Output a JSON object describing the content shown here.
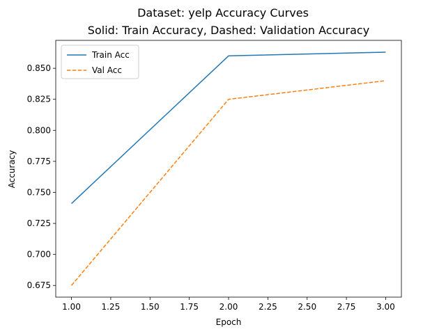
{
  "chart_data": {
    "type": "line",
    "title": "Dataset: yelp Accuracy Curves",
    "subtitle": "Solid: Train Accuracy, Dashed: Validation Accuracy",
    "xlabel": "Epoch",
    "ylabel": "Accuracy",
    "xlim": [
      0.9,
      3.1
    ],
    "ylim": [
      0.6656,
      0.8725
    ],
    "xticks": [
      1.0,
      1.25,
      1.5,
      1.75,
      2.0,
      2.25,
      2.5,
      2.75,
      3.0
    ],
    "xtick_labels": [
      "1.00",
      "1.25",
      "1.50",
      "1.75",
      "2.00",
      "2.25",
      "2.50",
      "2.75",
      "3.00"
    ],
    "yticks": [
      0.675,
      0.7,
      0.725,
      0.75,
      0.775,
      0.8,
      0.825,
      0.85
    ],
    "ytick_labels": [
      "0.675",
      "0.700",
      "0.725",
      "0.750",
      "0.775",
      "0.800",
      "0.825",
      "0.850"
    ],
    "grid": false,
    "legend_position": "top-left",
    "series": [
      {
        "name": "Train Acc",
        "color": "#1f77b4",
        "style": "solid",
        "x": [
          1.0,
          2.0,
          3.0
        ],
        "y": [
          0.741,
          0.86,
          0.863
        ]
      },
      {
        "name": "Val Acc",
        "color": "#ff7f0e",
        "style": "dashed",
        "x": [
          1.0,
          2.0,
          3.0
        ],
        "y": [
          0.675,
          0.825,
          0.84
        ]
      }
    ]
  }
}
